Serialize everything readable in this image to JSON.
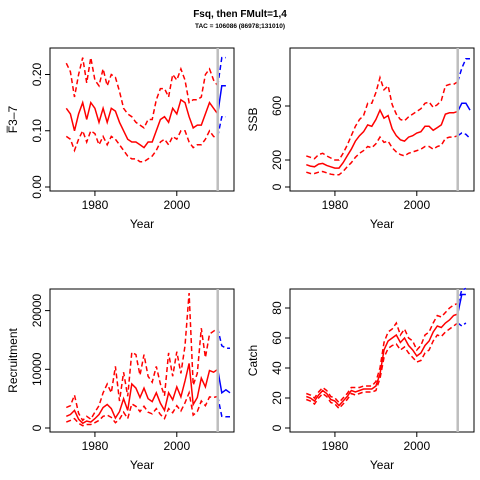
{
  "header": {
    "title": "Fsq, then FMult=1,4",
    "subtitle": "TAC = 106086 (86978;131010)"
  },
  "colors": {
    "history": "#ff0000",
    "projection": "#0000ff",
    "marker": "#bebebe"
  },
  "chart_data": [
    {
      "type": "line",
      "id": "fbar",
      "ylabel": "F̅3–7",
      "xlabel": "Year",
      "xlim": [
        1970,
        2013
      ],
      "ylim": [
        0,
        0.24
      ],
      "xticks": [
        1980,
        2000
      ],
      "yticks": [
        0.0,
        0.1,
        0.2
      ],
      "ytick_labels": [
        "0.00",
        "0.10",
        "0.20"
      ],
      "marker_year": 2010,
      "x": [
        1973,
        1974,
        1975,
        1976,
        1977,
        1978,
        1979,
        1980,
        1981,
        1982,
        1983,
        1984,
        1985,
        1986,
        1987,
        1988,
        1989,
        1990,
        1991,
        1992,
        1993,
        1994,
        1995,
        1996,
        1997,
        1998,
        1999,
        2000,
        2001,
        2002,
        2003,
        2004,
        2005,
        2006,
        2007,
        2008,
        2009,
        2010
      ],
      "series": [
        {
          "role": "median",
          "values": [
            0.14,
            0.13,
            0.1,
            0.13,
            0.15,
            0.12,
            0.15,
            0.14,
            0.115,
            0.14,
            0.115,
            0.14,
            0.135,
            0.115,
            0.1,
            0.085,
            0.08,
            0.08,
            0.075,
            0.07,
            0.08,
            0.08,
            0.1,
            0.12,
            0.125,
            0.115,
            0.14,
            0.13,
            0.155,
            0.15,
            0.125,
            0.105,
            0.11,
            0.11,
            0.13,
            0.15,
            0.14,
            0.13
          ]
        },
        {
          "role": "upper",
          "values": [
            0.22,
            0.205,
            0.16,
            0.2,
            0.23,
            0.185,
            0.23,
            0.19,
            0.18,
            0.21,
            0.18,
            0.2,
            0.195,
            0.17,
            0.14,
            0.13,
            0.125,
            0.115,
            0.11,
            0.105,
            0.12,
            0.12,
            0.155,
            0.175,
            0.175,
            0.16,
            0.2,
            0.19,
            0.21,
            0.19,
            0.15,
            0.155,
            0.155,
            0.16,
            0.2,
            0.21,
            0.19,
            0.18
          ]
        },
        {
          "role": "lower",
          "values": [
            0.09,
            0.085,
            0.065,
            0.085,
            0.1,
            0.08,
            0.1,
            0.095,
            0.075,
            0.09,
            0.075,
            0.09,
            0.085,
            0.075,
            0.065,
            0.055,
            0.05,
            0.05,
            0.045,
            0.045,
            0.05,
            0.055,
            0.065,
            0.08,
            0.085,
            0.075,
            0.09,
            0.085,
            0.1,
            0.1,
            0.08,
            0.07,
            0.075,
            0.075,
            0.085,
            0.1,
            0.09,
            0.085
          ]
        }
      ],
      "projection": {
        "x": [
          2010,
          2011,
          2012
        ],
        "median": [
          0.13,
          0.18,
          0.18
        ],
        "upper": [
          0.18,
          0.23,
          0.23
        ],
        "lower": [
          0.09,
          0.125,
          0.125
        ]
      }
    },
    {
      "type": "line",
      "id": "ssb",
      "ylabel": "SSB",
      "xlabel": "Year",
      "xlim": [
        1970,
        2013
      ],
      "ylim": [
        0,
        1000
      ],
      "xticks": [
        1980,
        2000
      ],
      "yticks": [
        0,
        200,
        600
      ],
      "ytick_labels": [
        "0",
        "200",
        "600"
      ],
      "marker_year": 2010,
      "x": [
        1973,
        1974,
        1975,
        1976,
        1977,
        1978,
        1979,
        1980,
        1981,
        1982,
        1983,
        1984,
        1985,
        1986,
        1987,
        1988,
        1989,
        1990,
        1991,
        1992,
        1993,
        1994,
        1995,
        1996,
        1997,
        1998,
        1999,
        2000,
        2001,
        2002,
        2003,
        2004,
        2005,
        2006,
        2007,
        2008,
        2009,
        2010
      ],
      "series": [
        {
          "role": "median",
          "values": [
            165,
            155,
            150,
            170,
            175,
            160,
            150,
            140,
            140,
            180,
            230,
            280,
            340,
            380,
            410,
            460,
            450,
            500,
            570,
            510,
            530,
            430,
            380,
            350,
            340,
            370,
            380,
            400,
            410,
            450,
            450,
            420,
            440,
            460,
            540,
            550,
            550,
            560
          ]
        },
        {
          "role": "upper",
          "values": [
            230,
            220,
            210,
            240,
            250,
            230,
            215,
            200,
            200,
            250,
            310,
            380,
            450,
            500,
            530,
            620,
            620,
            700,
            810,
            720,
            750,
            610,
            540,
            500,
            490,
            520,
            540,
            560,
            580,
            620,
            630,
            590,
            610,
            640,
            750,
            760,
            760,
            780
          ]
        },
        {
          "role": "lower",
          "values": [
            110,
            100,
            100,
            110,
            115,
            105,
            95,
            90,
            90,
            115,
            150,
            180,
            220,
            250,
            270,
            300,
            290,
            320,
            370,
            330,
            340,
            290,
            260,
            240,
            230,
            250,
            260,
            270,
            280,
            300,
            300,
            280,
            300,
            310,
            360,
            370,
            370,
            380
          ]
        }
      ],
      "projection": {
        "x": [
          2010,
          2011,
          2012,
          2013
        ],
        "median": [
          560,
          620,
          620,
          570
        ],
        "upper": [
          780,
          880,
          950,
          950
        ],
        "lower": [
          380,
          400,
          390,
          360
        ]
      }
    },
    {
      "type": "line",
      "id": "recruitment",
      "ylabel": "Recruitment",
      "xlabel": "Year",
      "xlim": [
        1970,
        2013
      ],
      "ylim": [
        0,
        23000
      ],
      "xticks": [
        1980,
        2000
      ],
      "yticks": [
        0,
        10000,
        20000
      ],
      "ytick_labels": [
        "0",
        "10000",
        "20000"
      ],
      "marker_year": 2010,
      "x": [
        1973,
        1974,
        1975,
        1976,
        1977,
        1978,
        1979,
        1980,
        1981,
        1982,
        1983,
        1984,
        1985,
        1986,
        1987,
        1988,
        1989,
        1990,
        1991,
        1992,
        1993,
        1994,
        1995,
        1996,
        1997,
        1998,
        1999,
        2000,
        2001,
        2002,
        2003,
        2004,
        2005,
        2006,
        2007,
        2008,
        2009,
        2010
      ],
      "series": [
        {
          "role": "median",
          "values": [
            2000,
            2300,
            3000,
            1500,
            800,
            1200,
            1000,
            1600,
            2300,
            3500,
            4000,
            3300,
            1700,
            2800,
            5000,
            3000,
            7500,
            6800,
            5200,
            6800,
            5000,
            4500,
            6000,
            4200,
            3000,
            6000,
            4800,
            7000,
            5300,
            8000,
            11000,
            4000,
            5200,
            8500,
            7000,
            9800,
            9500,
            10000
          ]
        },
        {
          "role": "upper",
          "values": [
            3500,
            3800,
            5600,
            2500,
            1300,
            2000,
            1500,
            2700,
            3800,
            6000,
            7500,
            6000,
            10500,
            4600,
            9500,
            5400,
            12900,
            12500,
            9000,
            12500,
            8800,
            7800,
            10500,
            7500,
            5500,
            12800,
            8800,
            13000,
            9300,
            14000,
            23000,
            7300,
            9300,
            17000,
            12000,
            16000,
            16500,
            17000
          ]
        },
        {
          "role": "lower",
          "values": [
            1000,
            1300,
            1600,
            800,
            400,
            600,
            600,
            900,
            1300,
            2000,
            2200,
            1800,
            900,
            1500,
            2700,
            1600,
            4100,
            3700,
            2800,
            3700,
            2700,
            2400,
            3300,
            2300,
            1600,
            3300,
            2600,
            3800,
            2900,
            4300,
            6000,
            2200,
            2800,
            4600,
            3800,
            5300,
            5200,
            5400
          ]
        }
      ],
      "projection": {
        "x": [
          2010,
          2011,
          2012,
          2013
        ],
        "median": [
          10000,
          6000,
          6500,
          6000
        ],
        "upper": [
          17000,
          14000,
          13600,
          13600
        ],
        "lower": [
          5400,
          2000,
          1900,
          1900
        ]
      }
    },
    {
      "type": "line",
      "id": "catch",
      "ylabel": "Catch",
      "xlabel": "Year",
      "xlim": [
        1970,
        2013
      ],
      "ylim": [
        0,
        90
      ],
      "xticks": [
        1980,
        2000
      ],
      "yticks": [
        0,
        20,
        40,
        60,
        80
      ],
      "ytick_labels": [
        "0",
        "20",
        "40",
        "60",
        "80"
      ],
      "marker_year": 2010,
      "x": [
        1973,
        1974,
        1975,
        1976,
        1977,
        1978,
        1979,
        1980,
        1981,
        1982,
        1983,
        1984,
        1985,
        1986,
        1987,
        1988,
        1989,
        1990,
        1991,
        1992,
        1993,
        1994,
        1995,
        1996,
        1997,
        1998,
        1999,
        2000,
        2001,
        2002,
        2003,
        2004,
        2005,
        2006,
        2007,
        2008,
        2009,
        2010
      ],
      "series": [
        {
          "role": "median",
          "values": [
            21,
            20,
            18,
            22,
            25,
            23,
            19,
            18,
            15,
            18,
            21,
            25,
            24,
            25,
            26,
            26,
            26,
            28,
            36,
            52,
            58,
            60,
            62,
            57,
            60,
            55,
            52,
            48,
            50,
            55,
            58,
            64,
            68,
            67,
            70,
            72,
            75,
            76
          ]
        },
        {
          "role": "upper",
          "values": [
            23,
            22,
            20,
            24,
            27,
            25,
            21,
            20,
            17,
            20,
            23,
            27,
            27,
            27,
            28,
            28,
            28,
            31,
            40,
            57,
            64,
            66,
            70,
            62,
            66,
            60,
            58,
            52,
            55,
            62,
            64,
            70,
            75,
            74,
            77,
            80,
            82,
            83
          ]
        },
        {
          "role": "lower",
          "values": [
            19,
            18,
            16,
            20,
            23,
            21,
            17,
            16,
            13,
            16,
            19,
            23,
            22,
            23,
            24,
            24,
            24,
            25,
            33,
            47,
            53,
            55,
            56,
            52,
            54,
            50,
            47,
            44,
            45,
            50,
            52,
            58,
            62,
            61,
            64,
            66,
            68,
            70
          ]
        }
      ],
      "projection": {
        "x": [
          2010,
          2011,
          2012
        ],
        "median": [
          76,
          89,
          89
        ],
        "upper": [
          83,
          92,
          93
        ],
        "lower": [
          70,
          68,
          70
        ]
      }
    }
  ]
}
